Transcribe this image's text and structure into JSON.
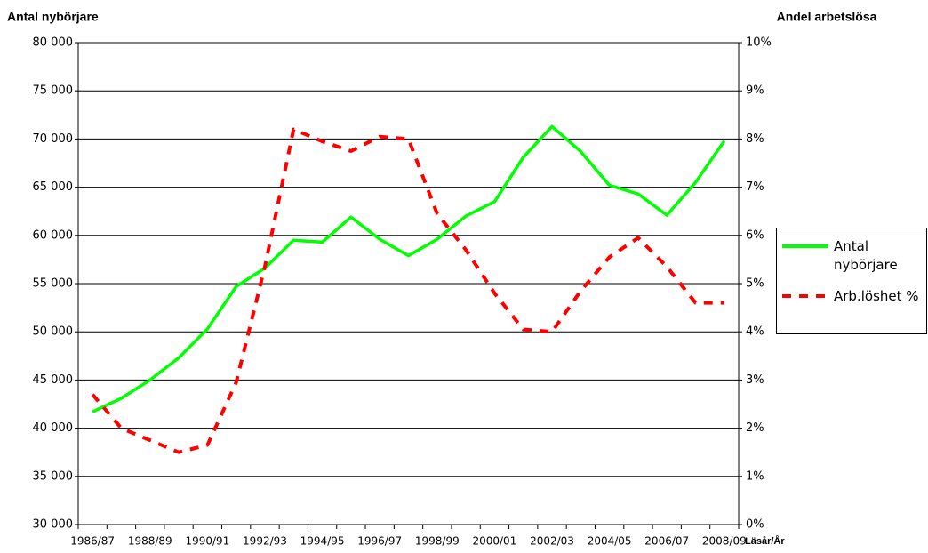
{
  "chart_data": {
    "type": "line",
    "y_title": "Antal nybörjare",
    "y2_title": "Andel arbetslösa",
    "x_title": "Läsår/År",
    "categories": [
      "1986/87",
      null,
      "1988/89",
      null,
      "1990/91",
      null,
      "1992/93",
      null,
      "1994/95",
      null,
      "1996/97",
      null,
      "1998/99",
      null,
      "2000/01",
      null,
      "2002/03",
      null,
      "2004/05",
      null,
      "2006/07",
      null,
      "2008/09"
    ],
    "series": [
      {
        "name": "Antal nybörjare",
        "color": "#00ff00",
        "values": [
          41700,
          43100,
          45000,
          47300,
          50300,
          54700,
          56600,
          59500,
          59300,
          61900,
          59600,
          57900,
          59600,
          62000,
          63500,
          68100,
          71300,
          68700,
          65200,
          64300,
          62100,
          65500,
          69800
        ]
      },
      {
        "name": "Arb.löshet %",
        "color": "#ff0000",
        "axis": "y2",
        "dashed": true,
        "values": [
          2.7,
          2.0,
          1.75,
          1.5,
          1.65,
          2.95,
          5.35,
          8.2,
          7.95,
          7.75,
          8.05,
          8.0,
          6.45,
          5.7,
          4.8,
          4.05,
          4.0,
          4.85,
          5.55,
          5.95,
          5.35,
          4.6,
          4.6
        ]
      }
    ],
    "ylim": [
      30000,
      80000
    ],
    "yticks": [
      {
        "value": 30000,
        "label": "30 000"
      },
      {
        "value": 35000,
        "label": "35 000"
      },
      {
        "value": 40000,
        "label": "40 000"
      },
      {
        "value": 45000,
        "label": "45 000"
      },
      {
        "value": 50000,
        "label": "50 000"
      },
      {
        "value": 55000,
        "label": "55 000"
      },
      {
        "value": 60000,
        "label": "60 000"
      },
      {
        "value": 65000,
        "label": "65 000"
      },
      {
        "value": 70000,
        "label": "70 000"
      },
      {
        "value": 75000,
        "label": "75 000"
      },
      {
        "value": 80000,
        "label": "80 000"
      }
    ],
    "y2lim": [
      0,
      10
    ],
    "y2ticks": [
      {
        "value": 0,
        "label": "0%"
      },
      {
        "value": 1,
        "label": "1%"
      },
      {
        "value": 2,
        "label": "2%"
      },
      {
        "value": 3,
        "label": "3%"
      },
      {
        "value": 4,
        "label": "4%"
      },
      {
        "value": 5,
        "label": "5%"
      },
      {
        "value": 6,
        "label": "6%"
      },
      {
        "value": 7,
        "label": "7%"
      },
      {
        "value": 8,
        "label": "8%"
      },
      {
        "value": 9,
        "label": "9%"
      },
      {
        "value": 10,
        "label": "10%"
      }
    ],
    "grid": true,
    "legend": "right"
  }
}
